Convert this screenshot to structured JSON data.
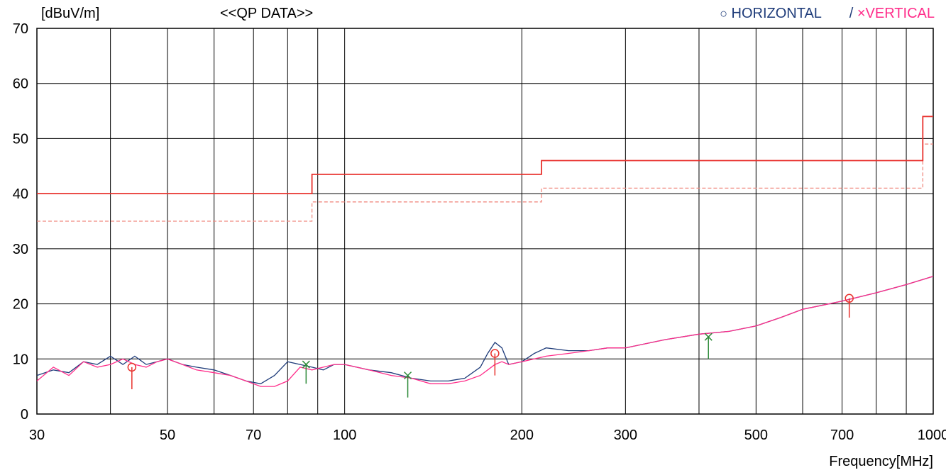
{
  "header": {
    "yunit": "[dBuV/m]",
    "title": "<<QP DATA>>",
    "legend": {
      "horizontal_symbol": "○",
      "horizontal_label": "HORIZONTAL",
      "separator": "/",
      "vertical_symbol": "×",
      "vertical_label": "VERTICAL"
    }
  },
  "colors": {
    "horizontal": "#1f3c7a",
    "vertical": "#ff2d8a",
    "limit": "#e8312c",
    "margin": "#f08a80",
    "qp_marker": "#e8312c",
    "vertical_qp_marker": "#2e8b3a"
  },
  "chart_data": {
    "type": "line",
    "title": "<<QP DATA>>",
    "xlabel": "Frequency[MHz]",
    "ylabel": "[dBuV/m]",
    "x_scale": "log",
    "xlim": [
      30,
      1000
    ],
    "ylim": [
      0,
      70
    ],
    "x_ticks": [
      30,
      50,
      70,
      100,
      200,
      300,
      500,
      700,
      1000
    ],
    "x_gridlines": [
      30,
      40,
      50,
      60,
      70,
      80,
      90,
      100,
      200,
      300,
      400,
      500,
      600,
      700,
      800,
      900,
      1000
    ],
    "y_ticks": [
      0,
      10,
      20,
      30,
      40,
      50,
      60,
      70
    ],
    "grid": true,
    "legend_position": "top-right",
    "limit_line": {
      "x": [
        30,
        88,
        88,
        216,
        216,
        960,
        960,
        1000
      ],
      "y": [
        40,
        40,
        43.5,
        43.5,
        46,
        46,
        54,
        54
      ]
    },
    "margin_line": {
      "x": [
        30,
        88,
        88,
        216,
        216,
        960,
        960,
        1000
      ],
      "y": [
        35,
        35,
        38.5,
        38.5,
        41,
        41,
        49,
        49
      ]
    },
    "series": [
      {
        "name": "HORIZONTAL",
        "x": [
          30,
          32,
          34,
          36,
          38,
          40,
          42,
          44,
          46,
          48,
          50,
          53,
          56,
          60,
          64,
          68,
          72,
          76,
          80,
          84,
          88,
          92,
          96,
          100,
          110,
          120,
          130,
          140,
          150,
          160,
          170,
          175,
          180,
          185,
          190,
          200,
          210,
          220,
          240,
          260,
          280,
          300,
          350,
          400,
          450,
          500,
          550,
          600,
          700,
          800,
          900,
          1000
        ],
        "y": [
          7,
          8,
          7.5,
          9.5,
          9,
          10.5,
          9,
          10.5,
          9,
          9.5,
          10,
          9,
          8.5,
          8,
          7,
          6,
          5.5,
          7,
          9.5,
          9,
          8.5,
          8,
          9,
          9,
          8,
          7.5,
          6.5,
          6,
          6,
          6.5,
          8.5,
          11,
          13,
          12,
          9,
          9.5,
          11,
          12,
          11.5,
          11.5,
          12,
          12,
          13.5,
          14.5,
          15,
          16,
          17.5,
          19,
          20.5,
          22,
          23.5,
          25
        ]
      },
      {
        "name": "VERTICAL",
        "x": [
          30,
          32,
          34,
          36,
          38,
          40,
          42,
          44,
          46,
          48,
          50,
          53,
          56,
          60,
          64,
          68,
          72,
          76,
          80,
          84,
          88,
          92,
          96,
          100,
          110,
          120,
          130,
          140,
          150,
          160,
          170,
          175,
          180,
          185,
          190,
          200,
          210,
          220,
          240,
          260,
          280,
          300,
          350,
          400,
          450,
          500,
          550,
          600,
          700,
          800,
          900,
          1000
        ],
        "y": [
          6,
          8.5,
          7,
          9.5,
          8.5,
          9,
          10,
          9,
          8.5,
          9.5,
          10,
          9,
          8,
          7.5,
          7,
          6,
          5,
          5,
          6,
          8.5,
          8,
          8.5,
          9,
          9,
          8,
          7,
          6.5,
          5.5,
          5.5,
          6,
          7,
          8,
          9,
          9.5,
          9,
          9.5,
          10,
          10.5,
          11,
          11.5,
          12,
          12,
          13.5,
          14.5,
          15,
          16,
          17.5,
          19,
          20.5,
          22,
          23.5,
          25
        ]
      }
    ],
    "qp_points_horizontal": [
      {
        "x": 43.5,
        "y": 8.5,
        "marker_low": 4.5
      },
      {
        "x": 180,
        "y": 11,
        "marker_low": 7
      },
      {
        "x": 720,
        "y": 21,
        "marker_low": 17.5
      }
    ],
    "qp_points_vertical": [
      {
        "x": 86,
        "y": 9,
        "marker_low": 5.5
      },
      {
        "x": 128,
        "y": 7,
        "marker_low": 3
      },
      {
        "x": 415,
        "y": 14,
        "marker_low": 10
      }
    ]
  }
}
